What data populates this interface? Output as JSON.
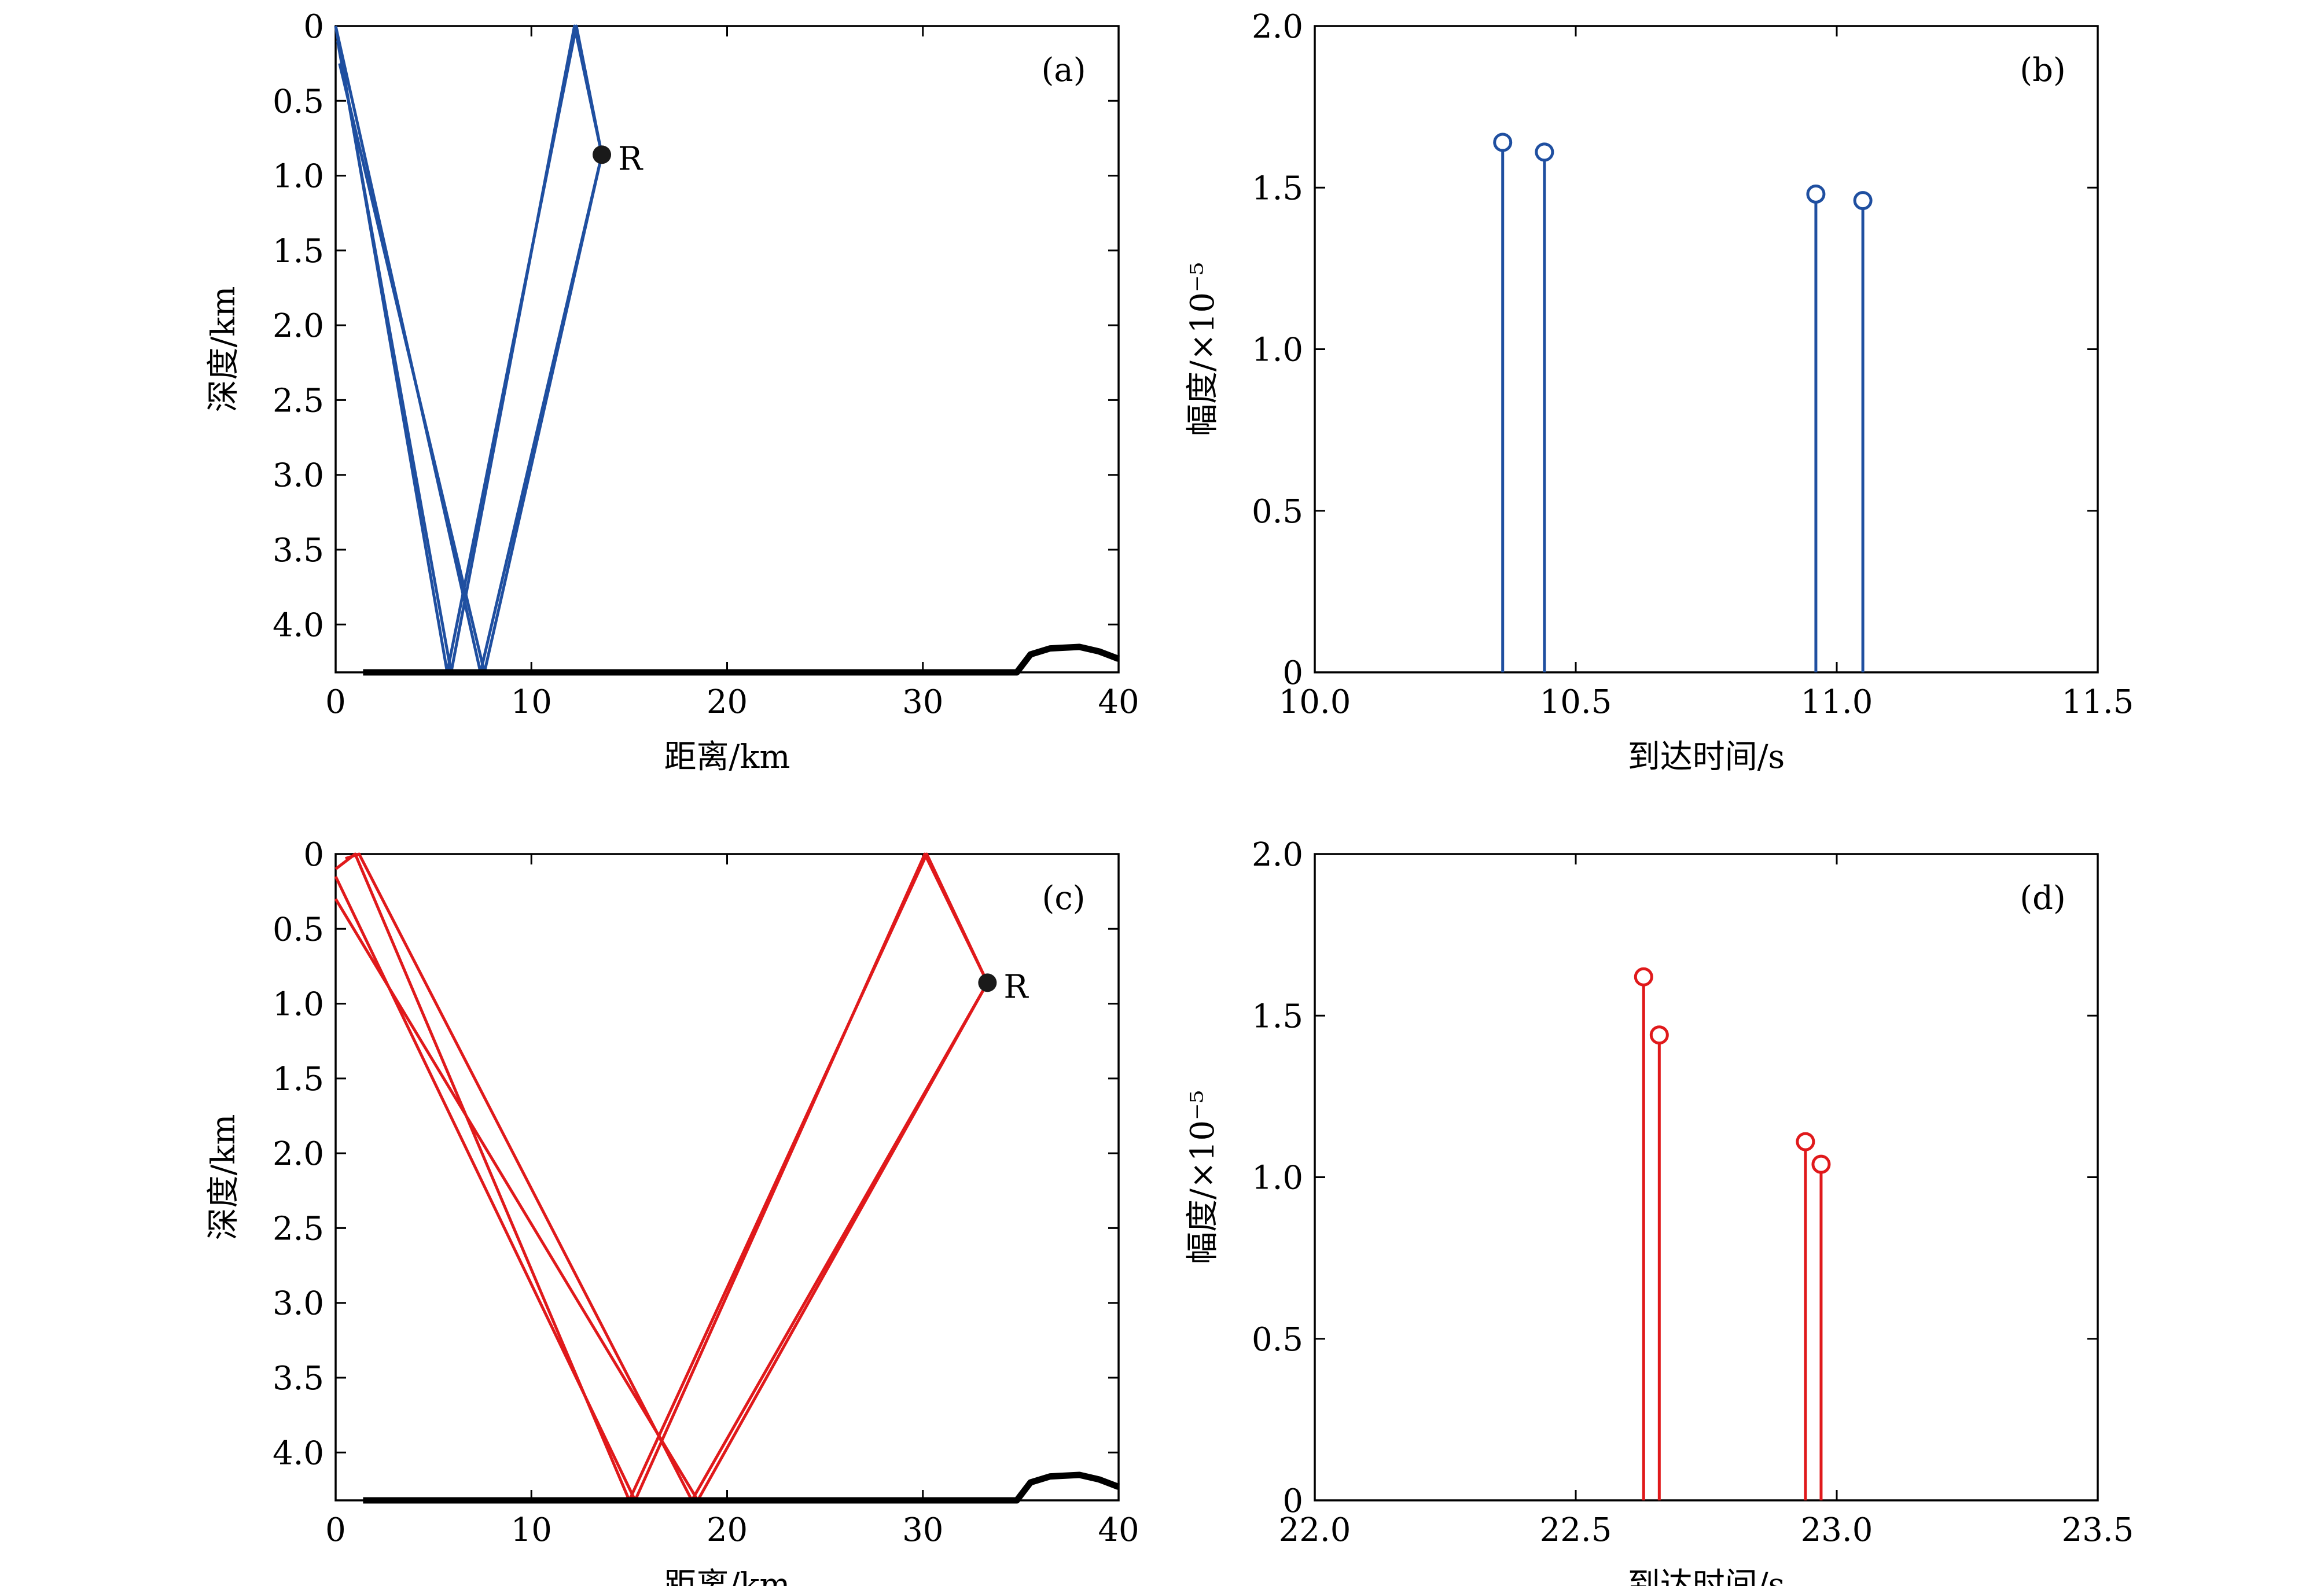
{
  "chart_data": [
    {
      "panel": "(a)",
      "type": "line",
      "xlabel": "距离/km",
      "ylabel": "深度/km",
      "xlim": [
        0,
        40
      ],
      "ylim": [
        4.32,
        0
      ],
      "y_inverted": true,
      "xticks": [
        0,
        10,
        20,
        30,
        40
      ],
      "xtick_labels": [
        "0",
        "10",
        "20",
        "30",
        "40"
      ],
      "yticks": [
        0,
        0.5,
        1.0,
        1.5,
        2.0,
        2.5,
        3.0,
        3.5,
        4.0
      ],
      "ytick_labels": [
        "0",
        "0.5",
        "1.0",
        "1.5",
        "2.0",
        "2.5",
        "3.0",
        "3.5",
        "4.0"
      ],
      "color": "#1f4fa0",
      "series": [
        {
          "x": [
            0,
            5.7,
            12.3,
            13.6
          ],
          "y": [
            0,
            4.32,
            0,
            0.86
          ]
        },
        {
          "x": [
            0.1,
            5.9,
            12.2,
            13.6
          ],
          "y": [
            0.1,
            4.32,
            0,
            0.86
          ]
        },
        {
          "x": [
            0,
            7.4,
            13.6
          ],
          "y": [
            0,
            4.32,
            0.86
          ]
        },
        {
          "x": [
            0.2,
            7.6,
            13.6
          ],
          "y": [
            0.25,
            4.32,
            0.86
          ]
        }
      ],
      "bottom_x": [
        1.4,
        34.8,
        35.5,
        36.5,
        38,
        39,
        40
      ],
      "bottom_y": [
        4.32,
        4.32,
        4.2,
        4.16,
        4.15,
        4.18,
        4.23
      ],
      "receiver": {
        "label": "R",
        "x": 13.6,
        "y": 0.86
      }
    },
    {
      "panel": "(b)",
      "type": "stem",
      "xlabel": "到达时间/s",
      "ylabel": "幅度/×10⁻⁵",
      "xlim": [
        10.0,
        11.5
      ],
      "ylim": [
        0,
        2.0
      ],
      "xticks": [
        10.0,
        10.5,
        11.0,
        11.5
      ],
      "xtick_labels": [
        "10.0",
        "10.5",
        "11.0",
        "11.5"
      ],
      "yticks": [
        0,
        0.5,
        1.0,
        1.5,
        2.0
      ],
      "ytick_labels": [
        "0",
        "0.5",
        "1.0",
        "1.5",
        "2.0"
      ],
      "color": "#1f4fa0",
      "x": [
        10.36,
        10.44,
        10.96,
        11.05
      ],
      "y": [
        1.64,
        1.61,
        1.48,
        1.46
      ]
    },
    {
      "panel": "(c)",
      "type": "line",
      "xlabel": "距离/km",
      "ylabel": "深度/km",
      "xlim": [
        0,
        40
      ],
      "ylim": [
        4.32,
        0
      ],
      "y_inverted": true,
      "xticks": [
        0,
        10,
        20,
        30,
        40
      ],
      "xtick_labels": [
        "0",
        "10",
        "20",
        "30",
        "40"
      ],
      "yticks": [
        0,
        0.5,
        1.0,
        1.5,
        2.0,
        2.5,
        3.0,
        3.5,
        4.0
      ],
      "ytick_labels": [
        "0",
        "0.5",
        "1.0",
        "1.5",
        "2.0",
        "2.5",
        "3.0",
        "3.5",
        "4.0"
      ],
      "color": "#e0191b",
      "series": [
        {
          "x": [
            0,
            1,
            15,
            30.2,
            33.3
          ],
          "y": [
            0.1,
            0,
            4.32,
            0,
            0.86
          ]
        },
        {
          "x": [
            0,
            15.3,
            30.1,
            33.3
          ],
          "y": [
            0.15,
            4.32,
            0,
            0.86
          ]
        },
        {
          "x": [
            0.5,
            1.2,
            18.2,
            33.3
          ],
          "y": [
            0.03,
            0,
            4.32,
            0.86
          ]
        },
        {
          "x": [
            0,
            18.5,
            33.3
          ],
          "y": [
            0.3,
            4.32,
            0.86
          ]
        }
      ],
      "bottom_x": [
        1.4,
        34.8,
        35.5,
        36.5,
        38,
        39,
        40
      ],
      "bottom_y": [
        4.32,
        4.32,
        4.2,
        4.16,
        4.15,
        4.18,
        4.23
      ],
      "receiver": {
        "label": "R",
        "x": 33.3,
        "y": 0.86
      }
    },
    {
      "panel": "(d)",
      "type": "stem",
      "xlabel": "到达时间/s",
      "ylabel": "幅度/×10⁻⁵",
      "xlim": [
        22.0,
        23.5
      ],
      "ylim": [
        0,
        2.0
      ],
      "xticks": [
        22.0,
        22.5,
        23.0,
        23.5
      ],
      "xtick_labels": [
        "22.0",
        "22.5",
        "23.0",
        "23.5"
      ],
      "yticks": [
        0,
        0.5,
        1.0,
        1.5,
        2.0
      ],
      "ytick_labels": [
        "0",
        "0.5",
        "1.0",
        "1.5",
        "2.0"
      ],
      "color": "#e0191b",
      "x": [
        22.63,
        22.66,
        22.94,
        22.97
      ],
      "y": [
        1.62,
        1.44,
        1.11,
        1.04
      ]
    }
  ]
}
